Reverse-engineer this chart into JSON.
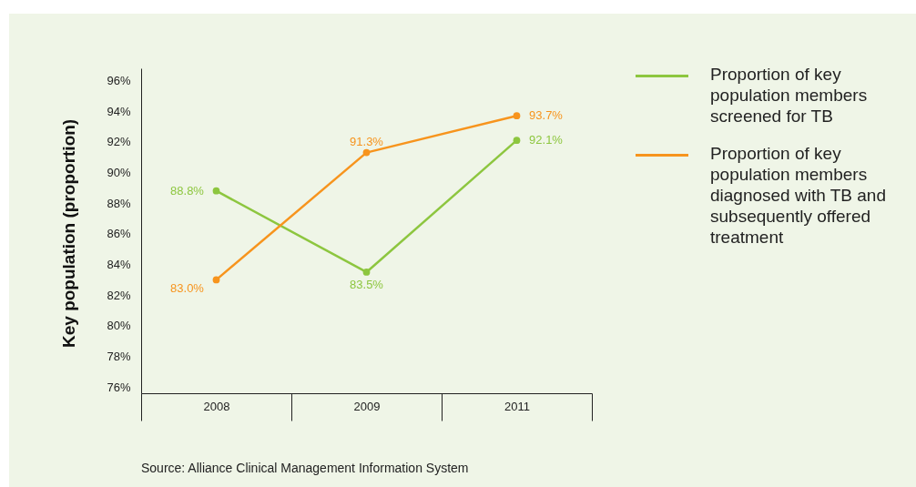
{
  "chart_data": {
    "type": "line",
    "ylabel": "Key population (proportion)",
    "categories": [
      "2008",
      "2009",
      "2011"
    ],
    "series": [
      {
        "name": "Proportion of key population members screened for TB",
        "color": "#8dc63f",
        "values": [
          88.8,
          83.5,
          92.1
        ],
        "value_labels": [
          "88.8%",
          "83.5%",
          "92.1%"
        ]
      },
      {
        "name": "Proportion of key population members diagnosed with TB and subsequently offered treatment",
        "color": "#f7941d",
        "values": [
          83.0,
          91.3,
          93.7
        ],
        "value_labels": [
          "83.0%",
          "91.3%",
          "93.7%"
        ]
      }
    ],
    "ylim": [
      75.6,
      96.8
    ],
    "yticks": [
      {
        "value": 76,
        "label": "76%"
      },
      {
        "value": 78,
        "label": "78%"
      },
      {
        "value": 80,
        "label": "80%"
      },
      {
        "value": 82,
        "label": "82%"
      },
      {
        "value": 84,
        "label": "84%"
      },
      {
        "value": 86,
        "label": "86%"
      },
      {
        "value": 88,
        "label": "88%"
      },
      {
        "value": 90,
        "label": "90%"
      },
      {
        "value": 92,
        "label": "92%"
      },
      {
        "value": 94,
        "label": "94%"
      },
      {
        "value": 96,
        "label": "96%"
      }
    ],
    "grid": false,
    "legend": "right",
    "marker": "circle",
    "line_style": "solid",
    "annotations": [
      "Source: Alliance Clinical Management Information System"
    ]
  }
}
